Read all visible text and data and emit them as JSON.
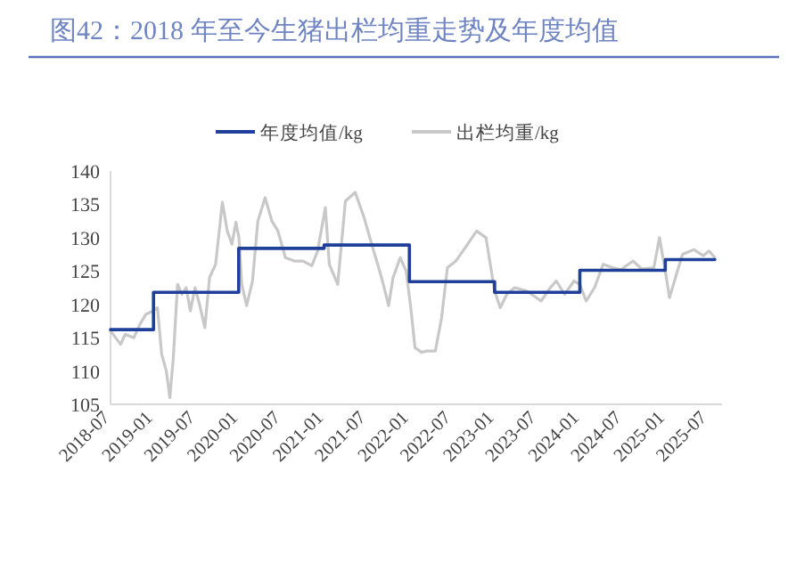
{
  "chart_data": {
    "type": "line",
    "title": "图42：2018 年至今生猪出栏均重走势及年度均值",
    "legend": "top",
    "xlim": [
      "2018-07",
      "2025-09"
    ],
    "ylim": [
      105,
      140
    ],
    "yticks": [
      105,
      110,
      115,
      120,
      125,
      130,
      135,
      140
    ],
    "xticks": [
      "2018-07",
      "2019-01",
      "2019-07",
      "2020-01",
      "2020-07",
      "2021-01",
      "2021-07",
      "2022-01",
      "2022-07",
      "2023-01",
      "2023-07",
      "2024-01",
      "2024-07",
      "2025-01",
      "2025-07"
    ],
    "series": [
      {
        "name": "年度均值/kg",
        "type": "step",
        "color": "#1f3f9a",
        "x": [
          "2018-07-01",
          "2019-01-01",
          "2020-01-01",
          "2021-01-01",
          "2022-01-01",
          "2023-01-01",
          "2024-01-01",
          "2025-01-01",
          "2025-08-01"
        ],
        "values": [
          116.2,
          121.8,
          128.4,
          128.9,
          123.4,
          121.8,
          125.1,
          126.7,
          126.7
        ]
      },
      {
        "name": "出栏均重/kg",
        "type": "line",
        "color": "#c8c8c8",
        "x": [
          "2018-07-01",
          "2018-08-13",
          "2018-09-02",
          "2018-10-09",
          "2018-11-04",
          "2018-11-29",
          "2018-12-30",
          "2019-01-18",
          "2019-02-05",
          "2019-02-25",
          "2019-03-12",
          "2019-03-27",
          "2019-04-14",
          "2019-05-03",
          "2019-05-21",
          "2019-06-08",
          "2019-06-28",
          "2019-07-17",
          "2019-08-09",
          "2019-08-29",
          "2019-09-24",
          "2019-10-23",
          "2019-11-13",
          "2019-12-03",
          "2019-12-20",
          "2020-01-02",
          "2020-01-14",
          "2020-02-04",
          "2020-02-29",
          "2020-03-23",
          "2020-04-23",
          "2020-05-22",
          "2020-06-17",
          "2020-07-19",
          "2020-08-26",
          "2020-10-02",
          "2020-11-09",
          "2020-12-04",
          "2021-01-06",
          "2021-01-23",
          "2021-02-28",
          "2021-04-02",
          "2021-05-14",
          "2021-06-21",
          "2021-07-28",
          "2021-09-04",
          "2021-10-04",
          "2021-10-23",
          "2021-11-23",
          "2021-12-18",
          "2022-01-07",
          "2022-01-25",
          "2022-02-22",
          "2022-03-16",
          "2022-04-22",
          "2022-05-19",
          "2022-06-13",
          "2022-07-19",
          "2022-08-28",
          "2022-10-16",
          "2022-11-25",
          "2023-01-01",
          "2023-01-25",
          "2023-02-22",
          "2023-03-28",
          "2023-05-19",
          "2023-07-19",
          "2023-08-28",
          "2023-09-22",
          "2023-10-28",
          "2023-12-07",
          "2024-01-01",
          "2024-01-28",
          "2024-03-04",
          "2024-04-10",
          "2024-05-19",
          "2024-06-25",
          "2024-08-16",
          "2024-09-22",
          "2024-11-13",
          "2024-12-07",
          "2025-01-01",
          "2025-01-19",
          "2025-02-22",
          "2025-03-16",
          "2025-05-04",
          "2025-06-13",
          "2025-07-07",
          "2025-08-01"
        ],
        "values": [
          116,
          114,
          115.5,
          115,
          117,
          118.5,
          119,
          119.5,
          112.5,
          110,
          106,
          112,
          123,
          121.5,
          122.5,
          119,
          122.5,
          120,
          116.5,
          124,
          126,
          135.3,
          131,
          129,
          132.3,
          130,
          123,
          119.8,
          123.5,
          132.5,
          136,
          132.5,
          131,
          127,
          126.5,
          126.5,
          125.8,
          128,
          134.5,
          126,
          123,
          135.5,
          136.8,
          133,
          128.5,
          124,
          119.8,
          124,
          127,
          125,
          119.5,
          113.5,
          112.8,
          113,
          113,
          118,
          125.5,
          126.5,
          128.5,
          131,
          130,
          122,
          119.5,
          121.5,
          122.5,
          122,
          120.5,
          122.5,
          123.5,
          121.5,
          123.5,
          123,
          120.5,
          122.5,
          126,
          125.5,
          125.2,
          126.5,
          125.3,
          125.5,
          130,
          125,
          121,
          125,
          127.5,
          128.2,
          127.3,
          128,
          127
        ]
      }
    ]
  }
}
